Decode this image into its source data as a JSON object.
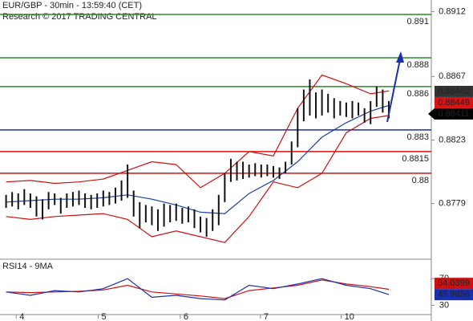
{
  "chart_data": [
    {
      "type": "ohlc",
      "title": "EUR/GBP - 30min - 13:59:40 (CET)",
      "subtitle": "Research © 2017 TRADING CENTRAL",
      "ylim": [
        0.8741,
        0.892
      ],
      "yticks": [
        0.8912,
        0.8867,
        0.8823,
        0.8779
      ],
      "xlim": [
        -1,
        70
      ],
      "bars": {
        "high": [
          0.8785,
          0.8787,
          0.8786,
          0.8789,
          0.8786,
          0.8784,
          0.8782,
          0.8787,
          0.8786,
          0.8783,
          0.8786,
          0.8787,
          0.8788,
          0.8786,
          0.8785,
          0.8786,
          0.8788,
          0.8787,
          0.879,
          0.8795,
          0.8806,
          0.8788,
          0.878,
          0.8778,
          0.8777,
          0.8775,
          0.8779,
          0.8778,
          0.8779,
          0.8776,
          0.8777,
          0.8775,
          0.877,
          0.8769,
          0.8775,
          0.8785,
          0.88,
          0.881,
          0.8808,
          0.8808,
          0.8806,
          0.8807,
          0.8806,
          0.8806,
          0.8805,
          0.8804,
          0.8808,
          0.8822,
          0.8845,
          0.8858,
          0.8865,
          0.8856,
          0.8858,
          0.8855,
          0.8852,
          0.885,
          0.8849,
          0.885,
          0.8849,
          0.8845,
          0.885,
          0.886,
          0.8858,
          0.885
        ],
        "low": [
          0.8776,
          0.8777,
          0.8775,
          0.8778,
          0.8776,
          0.877,
          0.8768,
          0.8775,
          0.8778,
          0.8772,
          0.8776,
          0.8777,
          0.8778,
          0.8776,
          0.8775,
          0.8776,
          0.8777,
          0.8778,
          0.8779,
          0.8781,
          0.8783,
          0.877,
          0.8762,
          0.8766,
          0.8764,
          0.876,
          0.8763,
          0.8766,
          0.8767,
          0.8765,
          0.8766,
          0.8762,
          0.8759,
          0.8756,
          0.876,
          0.8764,
          0.878,
          0.8794,
          0.8795,
          0.8796,
          0.8797,
          0.8798,
          0.8797,
          0.8798,
          0.8797,
          0.8796,
          0.88,
          0.8806,
          0.8818,
          0.8836,
          0.884,
          0.8838,
          0.884,
          0.8842,
          0.8838,
          0.884,
          0.8839,
          0.8838,
          0.884,
          0.8835,
          0.8834,
          0.8846,
          0.8842,
          0.8838
        ],
        "color": "#111111"
      },
      "series": [
        {
          "color": "#cc1111",
          "x": [
            0,
            4,
            8,
            12,
            16,
            20,
            24,
            28,
            32,
            36,
            40,
            44,
            48,
            52,
            56,
            60,
            63
          ],
          "values": [
            0.8794,
            0.8795,
            0.8793,
            0.8794,
            0.8796,
            0.8802,
            0.8808,
            0.8806,
            0.879,
            0.88,
            0.8815,
            0.8812,
            0.8845,
            0.8868,
            0.8862,
            0.8855,
            0.8857
          ]
        },
        {
          "color": "#cc1111",
          "x": [
            0,
            4,
            8,
            12,
            16,
            20,
            24,
            28,
            32,
            36,
            40,
            44,
            48,
            52,
            56,
            60,
            63
          ],
          "values": [
            0.877,
            0.8768,
            0.877,
            0.8771,
            0.8772,
            0.8768,
            0.8756,
            0.876,
            0.8756,
            0.8752,
            0.877,
            0.8794,
            0.879,
            0.88,
            0.8828,
            0.8838,
            0.884
          ]
        },
        {
          "color": "#1a3fa0",
          "x": [
            0,
            4,
            8,
            12,
            16,
            20,
            24,
            28,
            32,
            36,
            40,
            44,
            48,
            52,
            56,
            60,
            63
          ],
          "values": [
            0.878,
            0.8781,
            0.8782,
            0.8782,
            0.8783,
            0.8785,
            0.8782,
            0.8778,
            0.8773,
            0.8772,
            0.8786,
            0.8795,
            0.8808,
            0.8825,
            0.8835,
            0.8843,
            0.8847
          ]
        }
      ],
      "levels": [
        {
          "value": 0.891,
          "color": "#2a8a2a"
        },
        {
          "value": 0.888,
          "color": "#2a8a2a"
        },
        {
          "value": 0.886,
          "color": "#2a8a2a"
        },
        {
          "value": 0.883,
          "color": "#1a2fb0"
        },
        {
          "value": 0.8815,
          "color": "#d11"
        },
        {
          "value": 0.88,
          "color": "#d11"
        }
      ],
      "last_prices": [
        {
          "value": 0.88462,
          "color": "#333333"
        },
        {
          "value": 0.88449,
          "color": "#dd1111"
        },
        {
          "value": 0.88411,
          "color": "#000000"
        }
      ]
    },
    {
      "type": "line",
      "title": "RSI14 - 9MA",
      "ylim": [
        16,
        98
      ],
      "yticks": [
        70,
        30
      ],
      "xlim": [
        -1,
        70
      ],
      "xticks": [
        {
          "value": 2.2,
          "label": "4"
        },
        {
          "value": 15.7,
          "label": "5"
        },
        {
          "value": 29.2,
          "label": "6"
        },
        {
          "value": 42.4,
          "label": "7"
        },
        {
          "value": 55.7,
          "label": "10"
        }
      ],
      "series": [
        {
          "color": "#cc1111",
          "x": [
            0,
            4,
            8,
            12,
            16,
            20,
            24,
            28,
            32,
            36,
            40,
            44,
            48,
            52,
            56,
            60,
            63
          ],
          "values": [
            50,
            49,
            50,
            51,
            53,
            60,
            50,
            47,
            44,
            40,
            52,
            56,
            60,
            68,
            62,
            58,
            54.0399
          ]
        },
        {
          "color": "#1a2fb0",
          "x": [
            0,
            4,
            8,
            12,
            16,
            20,
            24,
            28,
            32,
            36,
            40,
            44,
            48,
            52,
            56,
            60,
            63
          ],
          "values": [
            50,
            45,
            52,
            50,
            55,
            70,
            42,
            45,
            40,
            38,
            60,
            55,
            62,
            70,
            60,
            55,
            45.9856
          ]
        }
      ]
    }
  ]
}
